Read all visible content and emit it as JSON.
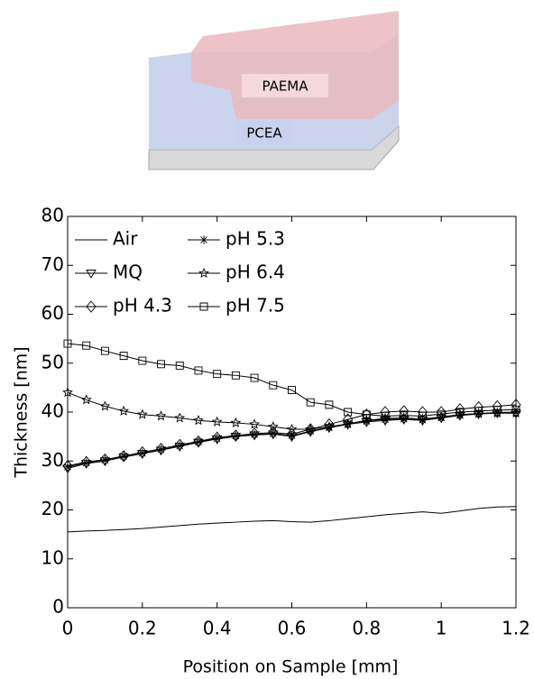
{
  "illustration": {
    "top_label": "PAEMA",
    "bottom_label": "PCEA"
  },
  "chart_data": {
    "type": "line",
    "xlabel": "Position on Sample [mm]",
    "ylabel": "Thickness [nm]",
    "x": [
      0,
      0.05,
      0.1,
      0.15,
      0.2,
      0.25,
      0.3,
      0.35,
      0.4,
      0.45,
      0.5,
      0.55,
      0.6,
      0.65,
      0.7,
      0.75,
      0.8,
      0.85,
      0.9,
      0.95,
      1,
      1.05,
      1.1,
      1.15,
      1.2
    ],
    "series": [
      {
        "name": "Air",
        "color": "#000000",
        "marker": "none",
        "values": [
          15.5,
          15.7,
          15.8,
          16.0,
          16.2,
          16.5,
          16.8,
          17.1,
          17.3,
          17.5,
          17.7,
          17.8,
          17.6,
          17.5,
          17.8,
          18.2,
          18.6,
          19.0,
          19.3,
          19.6,
          19.3,
          19.8,
          20.3,
          20.6,
          20.7
        ]
      },
      {
        "name": "MQ",
        "color": "#000000",
        "marker": "triangle-down",
        "values": [
          28.5,
          29.5,
          30.0,
          30.8,
          31.5,
          32.2,
          33.0,
          33.8,
          34.5,
          35.0,
          35.3,
          35.5,
          35.0,
          36.0,
          36.8,
          37.5,
          38.0,
          38.3,
          38.5,
          38.3,
          38.8,
          39.3,
          39.6,
          39.8,
          39.8
        ]
      },
      {
        "name": "pH 4.3",
        "color": "#000000",
        "marker": "diamond",
        "values": [
          29,
          29.8,
          30.3,
          31,
          31.8,
          32.5,
          33.3,
          34,
          34.8,
          35.2,
          35.6,
          35.8,
          35.5,
          36.5,
          37.5,
          38.5,
          39.5,
          40,
          40.2,
          40,
          40,
          40.6,
          41,
          41.2,
          41.5
        ]
      },
      {
        "name": "pH 5.3",
        "color": "#000000",
        "marker": "asterisk",
        "values": [
          28.8,
          29.6,
          30.2,
          31,
          31.6,
          32.3,
          33.1,
          33.9,
          34.6,
          35.1,
          35.4,
          35.6,
          35.2,
          36.1,
          36.9,
          37.6,
          38.2,
          38.5,
          38.6,
          38.4,
          38.9,
          39.4,
          39.7,
          39.9,
          40
        ]
      },
      {
        "name": "pH 6.4",
        "color": "#000000",
        "marker": "star",
        "values": [
          44,
          42.5,
          41.2,
          40.2,
          39.5,
          39.2,
          38.8,
          38.3,
          38,
          37.8,
          37.5,
          37.0,
          36.5,
          36.5,
          37,
          37.6,
          38.3,
          38.7,
          38.8,
          38.6,
          39,
          39.5,
          39.7,
          39.8,
          39.8
        ]
      },
      {
        "name": "pH 7.5",
        "color": "#000000",
        "marker": "square",
        "values": [
          54,
          53.6,
          52.5,
          51.5,
          50.5,
          49.8,
          49.5,
          48.5,
          47.8,
          47.5,
          47,
          45.5,
          44.5,
          42,
          41.5,
          40,
          39.5,
          39.2,
          39.3,
          39.2,
          39.6,
          40,
          40.2,
          40.4,
          40.5
        ]
      }
    ],
    "xlim": [
      0,
      1.2
    ],
    "xticks": [
      0,
      0.2,
      0.4,
      0.6,
      0.8,
      1,
      1.2
    ],
    "ylim": [
      0,
      80
    ],
    "yticks": [
      0,
      10,
      20,
      30,
      40,
      50,
      60,
      70,
      80
    ],
    "grid": false,
    "legend": "upper-left"
  }
}
